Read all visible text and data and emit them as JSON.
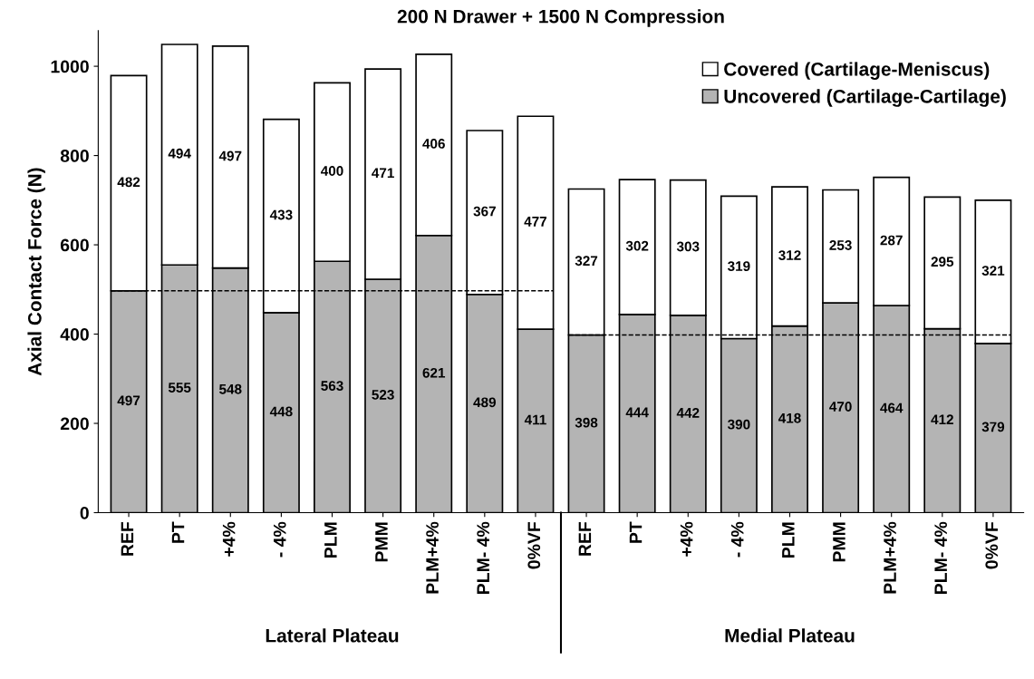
{
  "chart_data": {
    "type": "bar",
    "stacked": true,
    "title": "200 N Drawer + 1500 N Compression",
    "ylabel": "Axial Contact Force (N)",
    "categories": [
      "REF",
      "PT",
      "+4%",
      "- 4%",
      "PLM",
      "PMM",
      "PLM+4%",
      "PLM- 4%",
      "0%VF",
      "REF",
      "PT",
      "+4%",
      "- 4%",
      "PLM",
      "PMM",
      "PLM+4%",
      "PLM- 4%",
      "0%VF"
    ],
    "series": [
      {
        "name": "Uncovered (Cartilage-Cartilage)",
        "color": "#b4b4b4",
        "values": [
          497,
          555,
          548,
          448,
          563,
          523,
          621,
          489,
          411,
          398,
          444,
          442,
          390,
          418,
          470,
          464,
          412,
          379
        ]
      },
      {
        "name": "Covered (Cartilage-Meniscus)",
        "color": "#ffffff",
        "values": [
          482,
          494,
          497,
          433,
          400,
          471,
          406,
          367,
          477,
          327,
          302,
          303,
          319,
          312,
          253,
          287,
          295,
          321
        ]
      }
    ],
    "data_labels": true,
    "ylim": [
      0,
      1080
    ],
    "yticks": [
      0,
      200,
      400,
      600,
      800,
      1000
    ],
    "ref_lines": [
      {
        "axis": "y",
        "value": 497,
        "line_style": "dashed",
        "color": "#000000"
      },
      {
        "axis": "y",
        "value": 398,
        "line_style": "dashed",
        "color": "#000000"
      }
    ],
    "annotations": [
      "Lateral Plateau",
      "Medial Plateau"
    ],
    "legend": "top right",
    "grid": false
  }
}
